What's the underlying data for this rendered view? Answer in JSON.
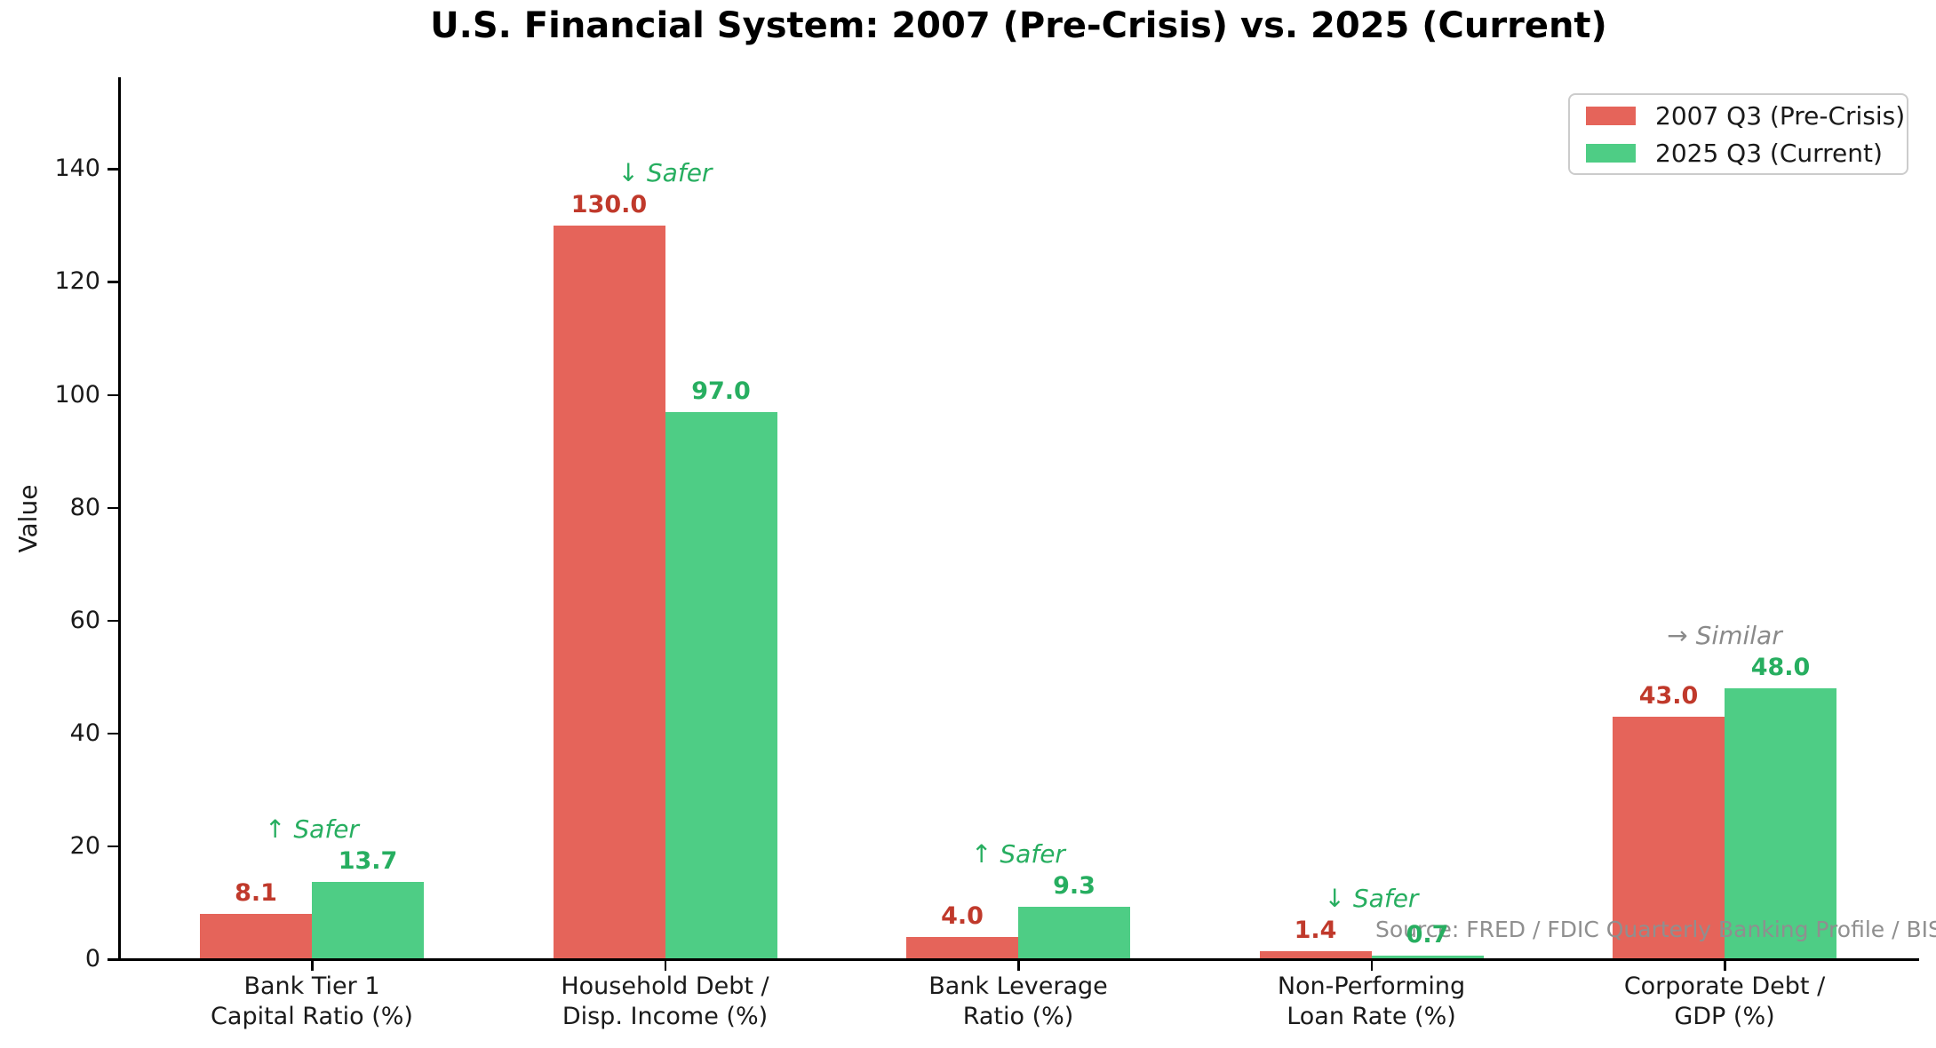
{
  "chart_data": {
    "type": "bar",
    "title": "U.S. Financial System: 2007 (Pre-Crisis) vs. 2025 (Current)",
    "ylabel": "Value",
    "xlabel": "",
    "ylim": [
      0,
      155
    ],
    "yticks": [
      0,
      20,
      40,
      60,
      80,
      100,
      120,
      140
    ],
    "grid": false,
    "legend_position": "upper right",
    "categories": [
      "Bank Tier 1\nCapital Ratio (%)",
      "Household Debt /\nDisp. Income (%)",
      "Bank Leverage\nRatio (%)",
      "Non-Performing\nLoan Rate (%)",
      "Corporate Debt /\nGDP (%)"
    ],
    "series": [
      {
        "name": "2007 Q3 (Pre-Crisis)",
        "color": "#e5645a",
        "label_color": "#c0392b",
        "values": [
          8.1,
          130.0,
          4.0,
          1.4,
          43.0
        ]
      },
      {
        "name": "2025 Q3 (Current)",
        "color": "#4ecd85",
        "label_color": "#27ae60",
        "values": [
          13.7,
          97.0,
          9.3,
          0.7,
          48.0
        ]
      }
    ],
    "annotations": [
      {
        "category_index": 0,
        "text": "↑ Safer",
        "color": "#27ae60"
      },
      {
        "category_index": 1,
        "text": "↓ Safer",
        "color": "#27ae60"
      },
      {
        "category_index": 2,
        "text": "↑ Safer",
        "color": "#27ae60"
      },
      {
        "category_index": 3,
        "text": "↓ Safer",
        "color": "#27ae60"
      },
      {
        "category_index": 4,
        "text": "→ Similar",
        "color": "#8a8a8a"
      }
    ]
  },
  "source_note": "Source: FRED / FDIC Quarterly Banking Profile / BIS",
  "colors": {
    "axis": "#000000",
    "text": "#1a1a1a",
    "source_text": "#8f8f8f"
  }
}
